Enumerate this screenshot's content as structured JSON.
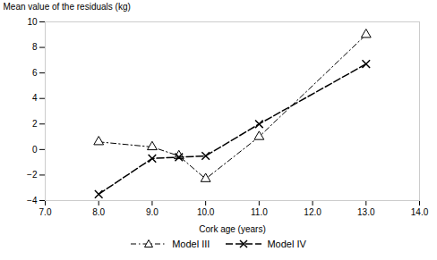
{
  "chart_data": {
    "type": "line",
    "xlabel": "Cork age (years)",
    "ylabel": "Mean value of the residuals (kg)",
    "x": [
      8,
      9,
      9.5,
      10,
      11,
      13
    ],
    "series": [
      {
        "name": "Model III",
        "color": "#000000",
        "values": [
          0.6,
          0.2,
          -0.5,
          -2.3,
          1.0,
          9.0
        ],
        "marker": "triangle",
        "line_style": "dashdot"
      },
      {
        "name": "Model IV",
        "color": "#000000",
        "values": [
          -3.5,
          -0.7,
          -0.6,
          -0.5,
          2.0,
          6.7
        ],
        "marker": "x",
        "line_style": "dashed"
      }
    ],
    "xlim": [
      7,
      14
    ],
    "ylim": [
      -4,
      10
    ],
    "xticks": [
      7,
      8,
      9,
      10,
      11,
      12,
      13,
      14
    ],
    "yticks": [
      -4,
      -2,
      0,
      2,
      4,
      6,
      8,
      10
    ],
    "legend": "bottom"
  }
}
